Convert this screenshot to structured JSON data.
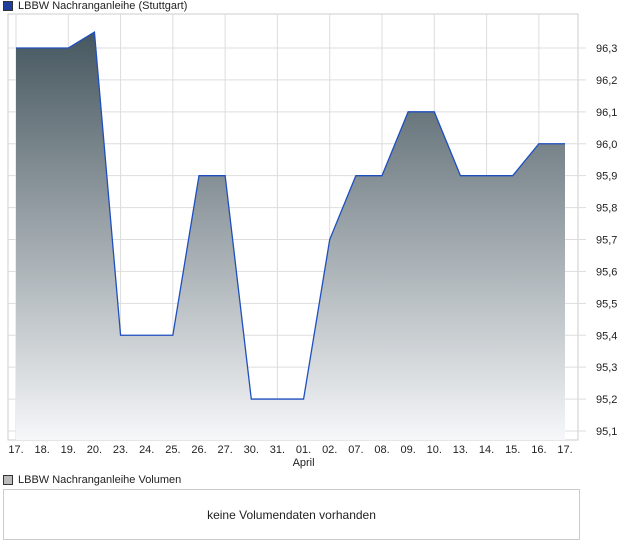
{
  "chart_data": {
    "type": "area",
    "title": "LBBW Nachranganleihe (Stuttgart)",
    "categories": [
      "17.",
      "18.",
      "19.",
      "20.",
      "23.",
      "24.",
      "25.",
      "26.",
      "27.",
      "30.",
      "31.",
      "01.",
      "02.",
      "07.",
      "08.",
      "09.",
      "10.",
      "13.",
      "14.",
      "15.",
      "16.",
      "17."
    ],
    "month_label": "April",
    "values": [
      96.3,
      96.3,
      96.3,
      96.35,
      95.4,
      95.4,
      95.4,
      95.9,
      95.9,
      95.2,
      95.2,
      95.2,
      95.7,
      95.9,
      95.9,
      96.1,
      96.1,
      95.9,
      95.9,
      95.9,
      96.0,
      96.0
    ],
    "yticks": [
      "96,3",
      "96,2",
      "96,1",
      "96,0",
      "95,9",
      "95,8",
      "95,7",
      "95,6",
      "95,5",
      "95,4",
      "95,3",
      "95,2",
      "95,1"
    ],
    "ytick_values": [
      96.3,
      96.2,
      96.1,
      96.0,
      95.9,
      95.8,
      95.7,
      95.6,
      95.5,
      95.4,
      95.3,
      95.2,
      95.1
    ],
    "ylim": [
      95.05,
      96.45
    ],
    "grid": true,
    "line_color": "#1f4fbf",
    "legend_color": "#1f3f9f"
  },
  "volume": {
    "title": "LBBW Nachranganleihe Volumen",
    "message": "keine Volumendaten vorhanden"
  }
}
